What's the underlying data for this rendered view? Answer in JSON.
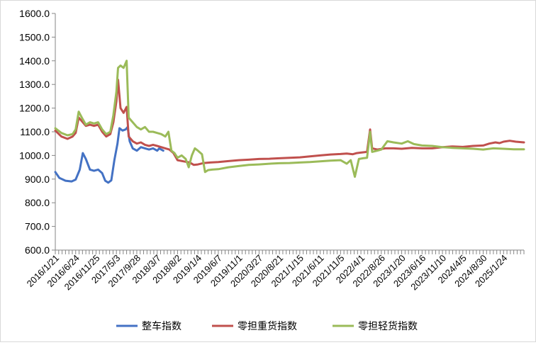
{
  "chart_data": {
    "type": "line",
    "title": "",
    "xlabel": "",
    "ylabel": "",
    "ylim": [
      600,
      1600
    ],
    "y_ticks": [
      "600.0",
      "700.0",
      "800.0",
      "900.0",
      "1000.0",
      "1100.0",
      "1200.0",
      "1300.0",
      "1400.0",
      "1500.0",
      "1600.0"
    ],
    "x_tick_labels": [
      "2016/1/21",
      "2016/6/24",
      "2016/11/25",
      "2017/5/3",
      "2017/9/28",
      "2018/3/7",
      "2018/8/2",
      "2019/1/4",
      "2019/6/7",
      "2019/11/1",
      "2020/3/27",
      "2020/8/21",
      "2021/1/15",
      "2021/6/11",
      "2021/11/5",
      "2022/4/1",
      "2022/8/26",
      "2023/1/20",
      "2023/6/16",
      "2023/11/10",
      "2024/4/5",
      "2024/8/30",
      "2025/1/24"
    ],
    "grid": false,
    "legend_position": "bottom",
    "series": [
      {
        "name": "整车指数",
        "color": "#4472C4",
        "points": [
          [
            0,
            930
          ],
          [
            0.2,
            905
          ],
          [
            0.5,
            893
          ],
          [
            0.8,
            890
          ],
          [
            1.0,
            898
          ],
          [
            1.2,
            940
          ],
          [
            1.35,
            1010
          ],
          [
            1.5,
            985
          ],
          [
            1.7,
            940
          ],
          [
            1.9,
            935
          ],
          [
            2.1,
            940
          ],
          [
            2.3,
            925
          ],
          [
            2.45,
            893
          ],
          [
            2.6,
            885
          ],
          [
            2.75,
            895
          ],
          [
            2.9,
            980
          ],
          [
            3.05,
            1050
          ],
          [
            3.15,
            1115
          ],
          [
            3.3,
            1105
          ],
          [
            3.45,
            1110
          ],
          [
            3.55,
            1120
          ],
          [
            3.65,
            1060
          ],
          [
            3.8,
            1030
          ],
          [
            4.0,
            1020
          ],
          [
            4.2,
            1035
          ],
          [
            4.4,
            1030
          ],
          [
            4.6,
            1025
          ],
          [
            4.8,
            1030
          ],
          [
            5.0,
            1020
          ],
          [
            5.1,
            1030
          ],
          [
            5.2,
            1025
          ],
          [
            5.3,
            1020
          ]
        ]
      },
      {
        "name": "零担重货指数",
        "color": "#C0504D",
        "points": [
          [
            0,
            1105
          ],
          [
            0.3,
            1080
          ],
          [
            0.6,
            1070
          ],
          [
            0.85,
            1080
          ],
          [
            1.0,
            1095
          ],
          [
            1.15,
            1160
          ],
          [
            1.3,
            1145
          ],
          [
            1.5,
            1125
          ],
          [
            1.7,
            1130
          ],
          [
            1.9,
            1125
          ],
          [
            2.1,
            1130
          ],
          [
            2.3,
            1100
          ],
          [
            2.5,
            1080
          ],
          [
            2.7,
            1090
          ],
          [
            2.85,
            1140
          ],
          [
            3.0,
            1230
          ],
          [
            3.08,
            1320
          ],
          [
            3.2,
            1200
          ],
          [
            3.35,
            1180
          ],
          [
            3.5,
            1205
          ],
          [
            3.6,
            1080
          ],
          [
            3.8,
            1060
          ],
          [
            4.0,
            1050
          ],
          [
            4.2,
            1055
          ],
          [
            4.4,
            1045
          ],
          [
            4.6,
            1040
          ],
          [
            4.8,
            1045
          ],
          [
            5.0,
            1040
          ],
          [
            5.2,
            1035
          ],
          [
            5.4,
            1030
          ],
          [
            5.6,
            1025
          ],
          [
            5.8,
            1010
          ],
          [
            6.0,
            980
          ],
          [
            6.3,
            975
          ],
          [
            6.6,
            970
          ],
          [
            6.8,
            960
          ],
          [
            7.0,
            962
          ],
          [
            7.3,
            968
          ],
          [
            7.6,
            970
          ],
          [
            8.0,
            972
          ],
          [
            8.5,
            976
          ],
          [
            9.0,
            980
          ],
          [
            9.5,
            982
          ],
          [
            10.0,
            985
          ],
          [
            10.5,
            986
          ],
          [
            11.0,
            988
          ],
          [
            11.5,
            990
          ],
          [
            12.0,
            992
          ],
          [
            12.5,
            996
          ],
          [
            13.0,
            1000
          ],
          [
            13.5,
            1004
          ],
          [
            14.0,
            1006
          ],
          [
            14.3,
            1008
          ],
          [
            14.6,
            1005
          ],
          [
            14.8,
            1010
          ],
          [
            15.0,
            1012
          ],
          [
            15.3,
            1015
          ],
          [
            15.45,
            1110
          ],
          [
            15.55,
            1030
          ],
          [
            15.8,
            1025
          ],
          [
            16.2,
            1030
          ],
          [
            16.6,
            1030
          ],
          [
            17.0,
            1028
          ],
          [
            17.5,
            1032
          ],
          [
            18.0,
            1030
          ],
          [
            18.5,
            1030
          ],
          [
            19.0,
            1035
          ],
          [
            19.5,
            1038
          ],
          [
            20.0,
            1036
          ],
          [
            20.5,
            1040
          ],
          [
            21.0,
            1042
          ],
          [
            21.3,
            1050
          ],
          [
            21.6,
            1055
          ],
          [
            21.8,
            1052
          ],
          [
            22.0,
            1058
          ],
          [
            22.3,
            1062
          ],
          [
            22.6,
            1058
          ],
          [
            23.0,
            1055
          ]
        ]
      },
      {
        "name": "零担轻货指数",
        "color": "#9BBB59",
        "points": [
          [
            0,
            1115
          ],
          [
            0.3,
            1095
          ],
          [
            0.6,
            1085
          ],
          [
            0.85,
            1090
          ],
          [
            1.0,
            1110
          ],
          [
            1.15,
            1185
          ],
          [
            1.3,
            1160
          ],
          [
            1.5,
            1130
          ],
          [
            1.7,
            1140
          ],
          [
            1.9,
            1135
          ],
          [
            2.1,
            1140
          ],
          [
            2.3,
            1110
          ],
          [
            2.5,
            1090
          ],
          [
            2.7,
            1100
          ],
          [
            2.85,
            1170
          ],
          [
            3.0,
            1270
          ],
          [
            3.08,
            1370
          ],
          [
            3.2,
            1380
          ],
          [
            3.35,
            1370
          ],
          [
            3.5,
            1400
          ],
          [
            3.6,
            1160
          ],
          [
            3.8,
            1140
          ],
          [
            4.0,
            1120
          ],
          [
            4.2,
            1110
          ],
          [
            4.4,
            1120
          ],
          [
            4.6,
            1100
          ],
          [
            4.8,
            1100
          ],
          [
            5.0,
            1095
          ],
          [
            5.2,
            1090
          ],
          [
            5.4,
            1080
          ],
          [
            5.55,
            1100
          ],
          [
            5.7,
            1020
          ],
          [
            5.85,
            1010
          ],
          [
            6.0,
            990
          ],
          [
            6.2,
            1000
          ],
          [
            6.4,
            985
          ],
          [
            6.55,
            950
          ],
          [
            6.7,
            1000
          ],
          [
            6.85,
            1030
          ],
          [
            7.0,
            1020
          ],
          [
            7.2,
            1005
          ],
          [
            7.35,
            930
          ],
          [
            7.5,
            938
          ],
          [
            7.7,
            940
          ],
          [
            8.0,
            942
          ],
          [
            8.5,
            950
          ],
          [
            9.0,
            955
          ],
          [
            9.5,
            960
          ],
          [
            10.0,
            962
          ],
          [
            10.5,
            965
          ],
          [
            11.0,
            967
          ],
          [
            11.5,
            968
          ],
          [
            12.0,
            970
          ],
          [
            12.5,
            972
          ],
          [
            13.0,
            975
          ],
          [
            13.5,
            978
          ],
          [
            14.0,
            980
          ],
          [
            14.3,
            965
          ],
          [
            14.5,
            980
          ],
          [
            14.7,
            910
          ],
          [
            14.9,
            985
          ],
          [
            15.1,
            988
          ],
          [
            15.3,
            990
          ],
          [
            15.45,
            1100
          ],
          [
            15.55,
            1015
          ],
          [
            15.8,
            1020
          ],
          [
            16.0,
            1025
          ],
          [
            16.3,
            1060
          ],
          [
            16.6,
            1055
          ],
          [
            17.0,
            1050
          ],
          [
            17.3,
            1060
          ],
          [
            17.6,
            1048
          ],
          [
            18.0,
            1042
          ],
          [
            18.5,
            1040
          ],
          [
            19.0,
            1035
          ],
          [
            19.5,
            1032
          ],
          [
            20.0,
            1030
          ],
          [
            20.5,
            1028
          ],
          [
            21.0,
            1025
          ],
          [
            21.5,
            1030
          ],
          [
            22.0,
            1028
          ],
          [
            22.5,
            1026
          ],
          [
            23.0,
            1026
          ]
        ]
      }
    ]
  }
}
